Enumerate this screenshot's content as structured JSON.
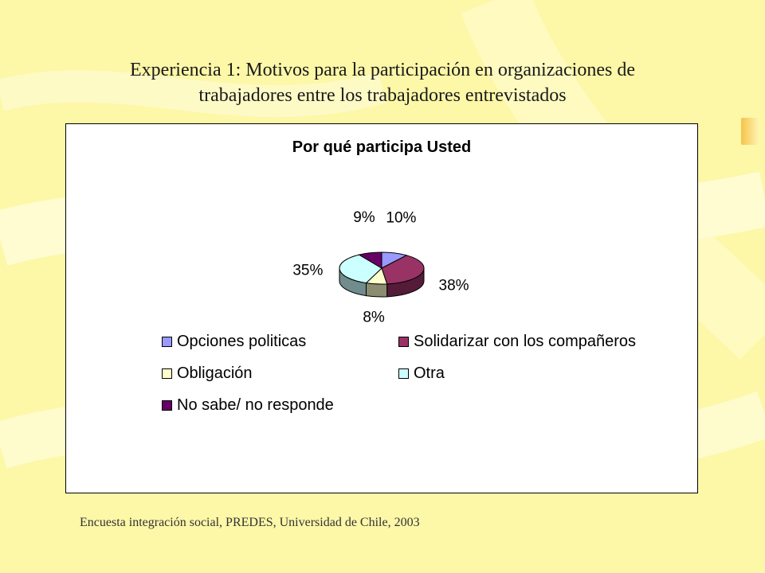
{
  "slide": {
    "title_line1": "Experiencia 1: Motivos para la participación en organizaciones de",
    "title_line2": "trabajadores entre los trabajadores entrevistados",
    "source": "Encuesta integración social, PREDES, Universidad de Chile, 2003"
  },
  "chart_data": {
    "type": "pie",
    "title": "Por qué participa Usted",
    "three_d": true,
    "legend_position": "bottom",
    "categories": [
      "Opciones politicas",
      "Solidarizar con los compañeros",
      "Obligación",
      "Otra",
      "No sabe/ no responde"
    ],
    "values": [
      10,
      38,
      8,
      35,
      9
    ],
    "labels": [
      "10%",
      "38%",
      "8%",
      "35%",
      "9%"
    ],
    "colors": [
      "#9999ff",
      "#993366",
      "#ffffcc",
      "#ccffff",
      "#660066"
    ]
  }
}
